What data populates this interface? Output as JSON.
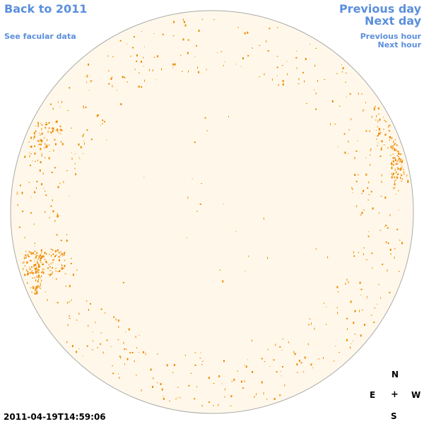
{
  "nav": {
    "back": "Back to 2011",
    "facular": "See facular data",
    "previous_day": "Previous day",
    "next_day": "Next day",
    "previous_hour": "Previous hour",
    "next_hour": "Next hour"
  },
  "compass": {
    "north": "N",
    "east": "E",
    "center": "+",
    "west": "W",
    "south": "S"
  },
  "timestamp": "2011-04-19T14:59:06",
  "colors": {
    "link": "#5b8fdc",
    "disk_fill": "#fff8ea",
    "disk_outline": "#aaaaaa",
    "facula": "#ee8a00"
  }
}
